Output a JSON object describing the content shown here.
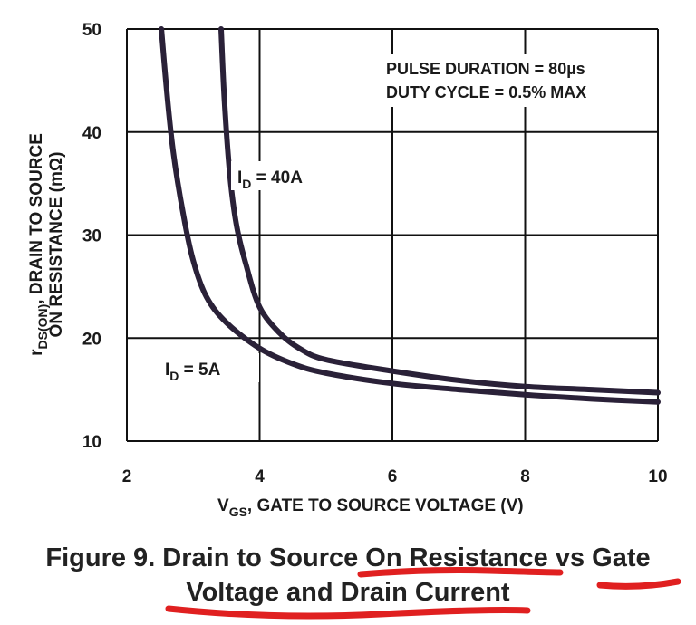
{
  "chart_data": {
    "type": "line",
    "x_axis": {
      "label_main": "V",
      "label_sub": "GS",
      "label_rest": ", GATE TO SOURCE VOLTAGE (V)",
      "min": 2,
      "max": 10,
      "ticks": [
        "2",
        "4",
        "6",
        "8",
        "10"
      ]
    },
    "y_axis": {
      "label_line1_main": "r",
      "label_line1_sub": "DS(ON)",
      "label_line1_rest": ", DRAIN TO SOURCE",
      "label_line2": "ON RESISTANCE (mΩ)",
      "min": 10,
      "max": 50,
      "ticks": [
        "10",
        "20",
        "30",
        "40",
        "50"
      ]
    },
    "grid": true,
    "annotations": {
      "line1": "PULSE DURATION = 80µs",
      "line2": "DUTY CYCLE = 0.5% MAX"
    },
    "series": [
      {
        "name_main": "I",
        "name_sub": "D",
        "name_rest": " = 5A",
        "points": [
          [
            2.52,
            50
          ],
          [
            2.6,
            44
          ],
          [
            2.7,
            38
          ],
          [
            2.85,
            32
          ],
          [
            3.0,
            27.5
          ],
          [
            3.2,
            24
          ],
          [
            3.5,
            21.5
          ],
          [
            4.0,
            19
          ],
          [
            4.5,
            17.5
          ],
          [
            5.0,
            16.6
          ],
          [
            6.0,
            15.6
          ],
          [
            7.0,
            15.0
          ],
          [
            8.0,
            14.5
          ],
          [
            9.0,
            14.1
          ],
          [
            10.0,
            13.8
          ]
        ]
      },
      {
        "name_main": "I",
        "name_sub": "D",
        "name_rest": " = 40A",
        "points": [
          [
            3.42,
            50
          ],
          [
            3.47,
            43
          ],
          [
            3.55,
            36
          ],
          [
            3.65,
            31
          ],
          [
            3.8,
            27
          ],
          [
            4.0,
            23
          ],
          [
            4.3,
            20.5
          ],
          [
            4.6,
            19
          ],
          [
            5.0,
            17.9
          ],
          [
            6.0,
            16.8
          ],
          [
            7.0,
            15.9
          ],
          [
            8.0,
            15.3
          ],
          [
            9.0,
            15.0
          ],
          [
            10.0,
            14.7
          ]
        ]
      }
    ],
    "colors": {
      "curve": "#2a2138",
      "grid": "#111111"
    }
  },
  "caption": {
    "line1": "Figure 9.  Drain to Source On Resistance vs Gate",
    "line2": "Voltage and Drain Current"
  },
  "handwriting_color": "#e02020"
}
